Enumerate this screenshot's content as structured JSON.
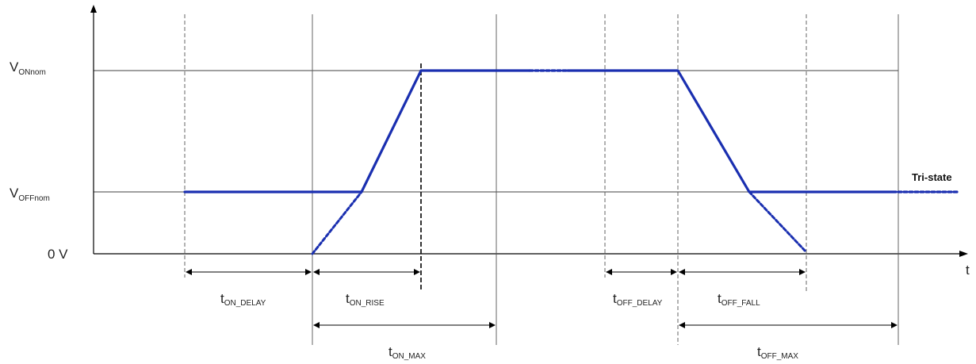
{
  "diagram": {
    "colors": {
      "signal": "#1a2fb0",
      "axis": "#000000",
      "guide": "#444444",
      "dimension": "#000000",
      "background": "#ffffff"
    },
    "axes": {
      "y_levels": {
        "von_main": "V",
        "von_sub": "ONnom",
        "voff_main": "V",
        "voff_sub": "OFFnom",
        "zero": "0 V"
      },
      "x_label": "t"
    },
    "annotations": {
      "tristate": "Tri-state"
    },
    "timings": {
      "on_delay": {
        "main": "t",
        "sub": "ON_DELAY"
      },
      "on_rise": {
        "main": "t",
        "sub": "ON_RISE"
      },
      "on_max": {
        "main": "t",
        "sub": "ON_MAX"
      },
      "off_delay": {
        "main": "t",
        "sub": "OFF_DELAY"
      },
      "off_fall": {
        "main": "t",
        "sub": "OFF_FALL"
      },
      "off_max": {
        "main": "t",
        "sub": "OFF_MAX"
      }
    }
  }
}
